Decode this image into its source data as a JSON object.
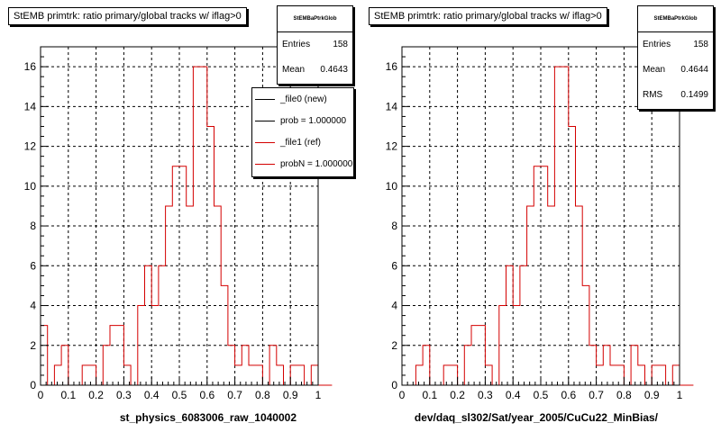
{
  "chart_data": [
    {
      "type": "histogram",
      "title": "StEMB primtrk: ratio primary/global tracks w/ iflag>0",
      "xlabel": "st_physics_6083006_raw_1040002",
      "ylabel": "",
      "xlim": [
        0,
        1
      ],
      "ylim": [
        0,
        17
      ],
      "x_ticks": [
        "0",
        "0.1",
        "0.2",
        "0.3",
        "0.4",
        "0.5",
        "0.6",
        "0.7",
        "0.8",
        "0.9",
        "1"
      ],
      "y_ticks": [
        "0",
        "2",
        "4",
        "6",
        "8",
        "10",
        "12",
        "14",
        "16"
      ],
      "grid": true,
      "line_color": "#d40000",
      "bin_width": 0.025,
      "values": [
        3,
        0,
        1,
        2,
        0,
        0,
        1,
        1,
        0,
        2,
        3,
        3,
        1,
        0,
        4,
        6,
        4,
        6,
        9,
        11,
        11,
        9,
        16,
        16,
        13,
        9,
        5,
        2,
        1,
        2,
        1,
        1,
        0,
        2,
        1,
        0,
        1,
        1,
        0,
        1,
        0,
        0
      ],
      "stats": {
        "name": "StEMBaPtrkGlob",
        "rows": [
          {
            "label": "Entries",
            "value": "158"
          },
          {
            "label": "Mean",
            "value": "0.4643"
          }
        ]
      },
      "legend": {
        "placement": "top-right",
        "entries": [
          {
            "label": "_file0 (new)",
            "color": "#000000"
          },
          {
            "label": "prob = 1.000000",
            "color": "#000000"
          },
          {
            "label": "_file1 (ref)",
            "color": "#d40000"
          },
          {
            "label": "probN = 1.000000",
            "color": "#d40000"
          }
        ]
      }
    },
    {
      "type": "histogram",
      "title": "StEMB primtrk: ratio primary/global tracks w/ iflag>0",
      "xlabel": "dev/daq_sl302/Sat/year_2005/CuCu22_MinBias/",
      "ylabel": "",
      "xlim": [
        0,
        1
      ],
      "ylim": [
        0,
        17
      ],
      "x_ticks": [
        "0",
        "0.1",
        "0.2",
        "0.3",
        "0.4",
        "0.5",
        "0.6",
        "0.7",
        "0.8",
        "0.9",
        "1"
      ],
      "y_ticks": [
        "0",
        "2",
        "4",
        "6",
        "8",
        "10",
        "12",
        "14",
        "16"
      ],
      "grid": true,
      "line_color": "#d40000",
      "bin_width": 0.025,
      "values": [
        0,
        0,
        1,
        2,
        0,
        0,
        1,
        1,
        0,
        2,
        3,
        3,
        1,
        0,
        4,
        6,
        4,
        6,
        9,
        11,
        11,
        9,
        16,
        16,
        13,
        9,
        5,
        2,
        1,
        2,
        1,
        1,
        0,
        2,
        1,
        0,
        1,
        1,
        0,
        1,
        0,
        0
      ],
      "stats": {
        "name": "StEMBaPtrkGlob",
        "rows": [
          {
            "label": "Entries",
            "value": "158"
          },
          {
            "label": "Mean",
            "value": "0.4644"
          },
          {
            "label": "RMS",
            "value": "0.1499"
          }
        ]
      }
    }
  ]
}
